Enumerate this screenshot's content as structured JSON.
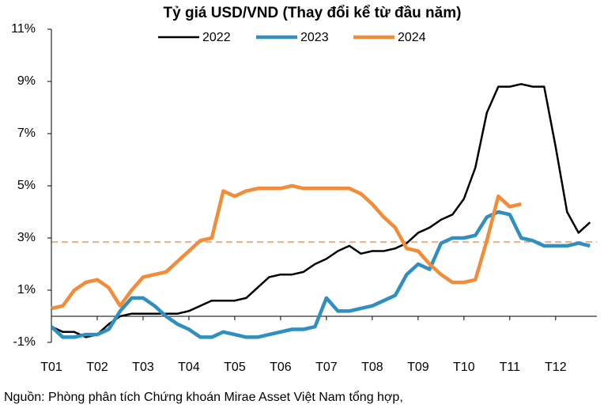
{
  "chart_data": {
    "type": "line",
    "title": "Tỷ giá USD/VND (Thay đổi kể từ đầu năm)",
    "source": "Nguồn: Phòng phân tích Chứng khoán Mirae Asset Việt Nam tổng hợp,",
    "x": [
      1,
      1.25,
      1.5,
      1.75,
      2,
      2.25,
      2.5,
      2.75,
      3,
      3.25,
      3.5,
      3.75,
      4,
      4.25,
      4.5,
      4.75,
      5,
      5.25,
      5.5,
      5.75,
      6,
      6.25,
      6.5,
      6.75,
      7,
      7.25,
      7.5,
      7.75,
      8,
      8.25,
      8.5,
      8.75,
      9,
      9.25,
      9.5,
      9.75,
      10,
      10.25,
      10.5,
      10.75,
      11,
      11.25,
      11.5,
      11.75,
      12,
      12.25,
      12.5,
      12.75
    ],
    "series": [
      {
        "name": "2022",
        "color": "#000000",
        "width": 2.5,
        "values": [
          -0.4,
          -0.6,
          -0.6,
          -0.8,
          -0.7,
          -0.3,
          0,
          0.1,
          0.1,
          0.1,
          0.1,
          0.1,
          0.2,
          0.4,
          0.6,
          0.6,
          0.6,
          0.7,
          1.1,
          1.5,
          1.6,
          1.6,
          1.7,
          2.0,
          2.2,
          2.5,
          2.7,
          2.4,
          2.5,
          2.5,
          2.6,
          2.8,
          3.2,
          3.4,
          3.7,
          3.9,
          4.5,
          5.7,
          7.8,
          8.8,
          8.8,
          8.9,
          8.8,
          8.8,
          6.5,
          4.0,
          3.2,
          3.6
        ]
      },
      {
        "name": "2023",
        "color": "#2e8fc0",
        "width": 4.5,
        "values": [
          -0.4,
          -0.8,
          -0.8,
          -0.7,
          -0.7,
          -0.5,
          0.2,
          0.7,
          0.7,
          0.4,
          0,
          -0.3,
          -0.5,
          -0.8,
          -0.8,
          -0.6,
          -0.7,
          -0.8,
          -0.8,
          -0.7,
          -0.6,
          -0.5,
          -0.5,
          -0.4,
          0.7,
          0.2,
          0.2,
          0.3,
          0.4,
          0.6,
          0.8,
          1.6,
          2.0,
          1.8,
          2.8,
          3.0,
          3.0,
          3.1,
          3.8,
          4.0,
          3.9,
          3.0,
          2.9,
          2.7,
          2.7,
          2.7,
          2.8,
          2.7
        ]
      },
      {
        "name": "2024",
        "color": "#f28c38",
        "width": 4.5,
        "values": [
          0.3,
          0.4,
          1.0,
          1.3,
          1.4,
          1.1,
          0.4,
          1.0,
          1.5,
          1.6,
          1.7,
          2.1,
          2.5,
          2.9,
          3.0,
          4.8,
          4.6,
          4.8,
          4.9,
          4.9,
          4.9,
          5.0,
          4.9,
          4.9,
          4.9,
          4.9,
          4.9,
          4.7,
          4.3,
          3.8,
          3.4,
          2.6,
          2.5,
          2.0,
          1.6,
          1.3,
          1.3,
          1.4,
          2.9,
          4.6,
          4.2,
          4.3,
          null,
          null,
          null,
          null,
          null,
          null
        ]
      }
    ],
    "reference_line": {
      "value": 2.85,
      "color": "#f4b183"
    },
    "xlim": [
      1,
      12.9
    ],
    "xticks": [
      {
        "value": 1,
        "label": "T01"
      },
      {
        "value": 2,
        "label": "T02"
      },
      {
        "value": 3,
        "label": "T03"
      },
      {
        "value": 4,
        "label": "T04"
      },
      {
        "value": 5,
        "label": "T05"
      },
      {
        "value": 6,
        "label": "T06"
      },
      {
        "value": 7,
        "label": "T07"
      },
      {
        "value": 8,
        "label": "T08"
      },
      {
        "value": 9,
        "label": "T09"
      },
      {
        "value": 10,
        "label": "T10"
      },
      {
        "value": 11,
        "label": "T11"
      },
      {
        "value": 12,
        "label": "T12"
      }
    ],
    "ylim": [
      -1,
      11
    ],
    "yticks": [
      {
        "value": -1,
        "label": "-1%"
      },
      {
        "value": 1,
        "label": "1%"
      },
      {
        "value": 3,
        "label": "3%"
      },
      {
        "value": 5,
        "label": "5%"
      },
      {
        "value": 7,
        "label": "7%"
      },
      {
        "value": 9,
        "label": "9%"
      },
      {
        "value": 11,
        "label": "11%"
      }
    ],
    "grid": false
  }
}
